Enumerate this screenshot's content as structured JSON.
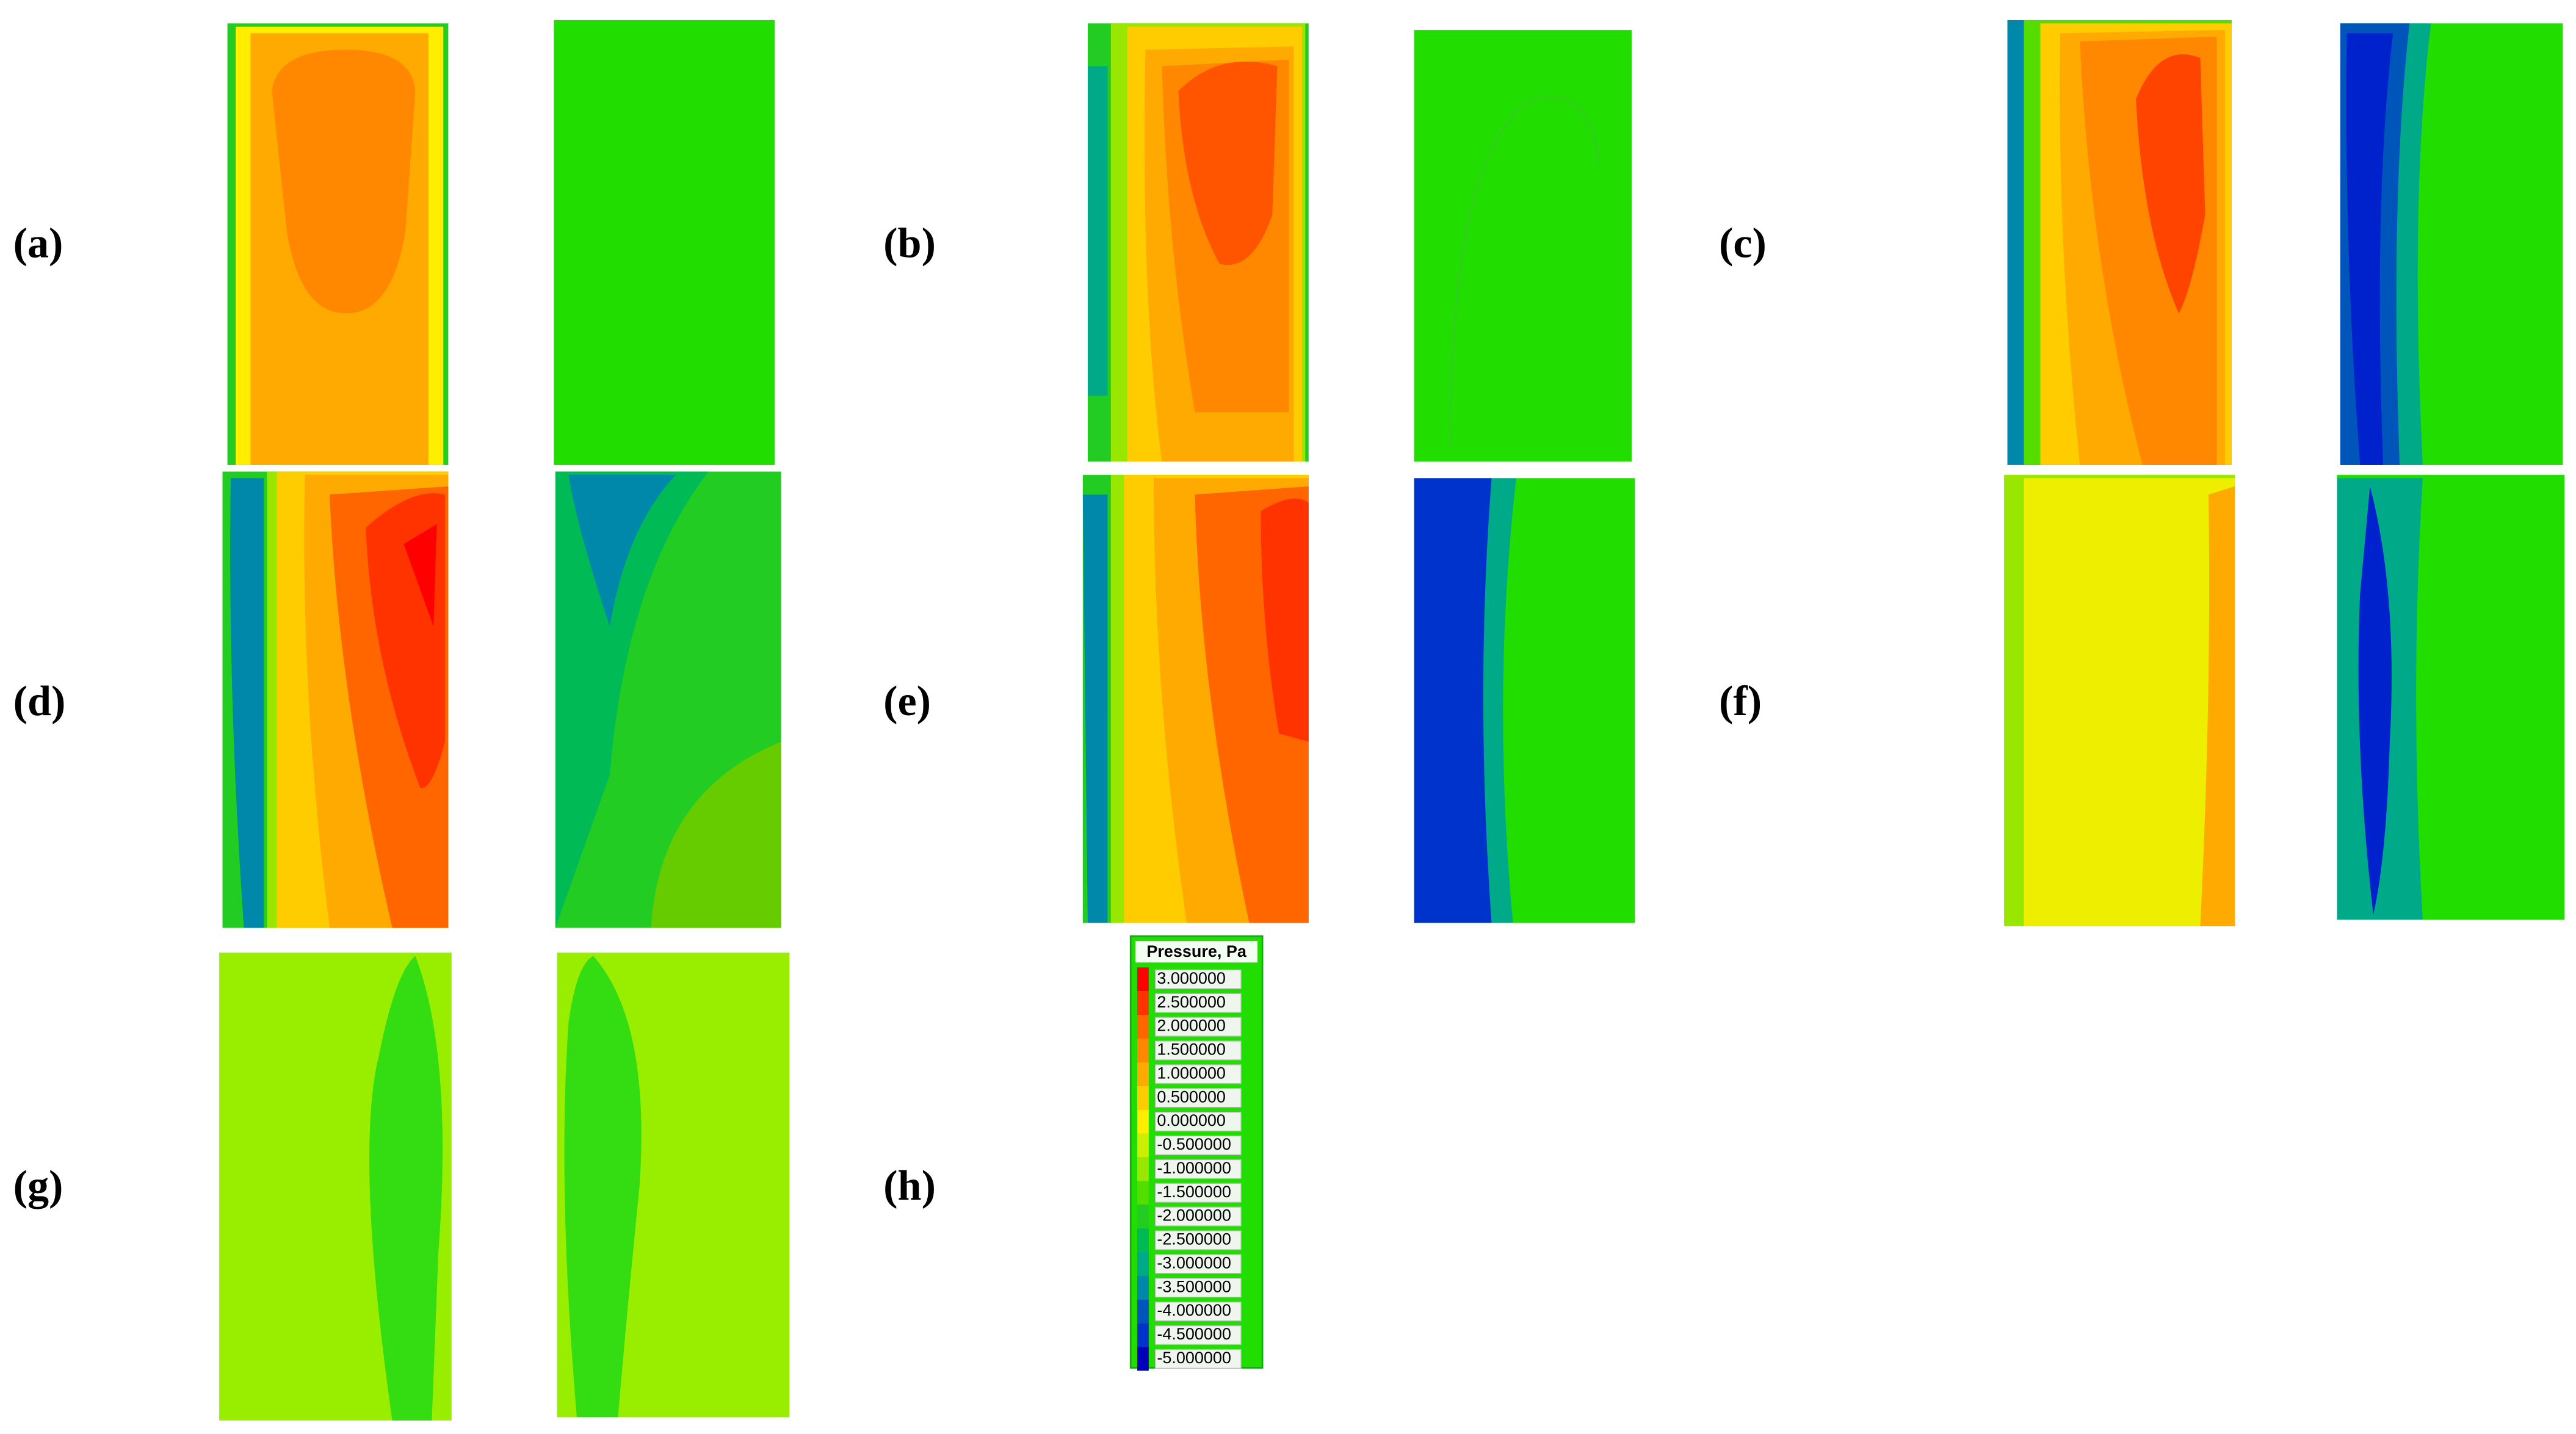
{
  "panels": [
    {
      "label": "(a)"
    },
    {
      "label": "(b)"
    },
    {
      "label": "(c)"
    },
    {
      "label": "(d)"
    },
    {
      "label": "(e)"
    },
    {
      "label": "(f)"
    },
    {
      "label": "(g)"
    },
    {
      "label": "(h)"
    }
  ],
  "legend": {
    "title": "Pressure, Pa",
    "labels": [
      "3.000000",
      "2.500000",
      "2.000000",
      "1.500000",
      "1.000000",
      "0.500000",
      "0.000000",
      "-0.500000",
      "-1.000000",
      "-1.500000",
      "-2.000000",
      "-2.500000",
      "-3.000000",
      "-3.500000",
      "-4.000000",
      "-4.500000",
      "-5.000000"
    ],
    "colors": [
      "#ff0000",
      "#ff3300",
      "#ff6600",
      "#ff8800",
      "#ffaa00",
      "#ffcc00",
      "#ffee00",
      "#ccee00",
      "#99e600",
      "#55dd00",
      "#22cc22",
      "#00bb55",
      "#00aa88",
      "#0088aa",
      "#0055bb",
      "#0033cc",
      "#0000bb"
    ]
  }
}
